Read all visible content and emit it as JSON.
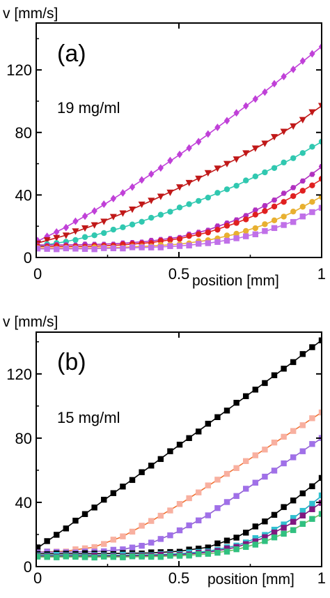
{
  "chart_data": [
    {
      "type": "scatter",
      "panel_label": "(a)",
      "annotation": "19 mg/ml",
      "xlabel": "position [mm]",
      "ylabel": "v [mm/s]",
      "xlim": [
        0,
        1
      ],
      "ylim": [
        0,
        150
      ],
      "xticks": [
        {
          "v": 0,
          "label": "0"
        },
        {
          "v": 0.5,
          "label": "0.5"
        },
        {
          "v": 1,
          "label": "1"
        }
      ],
      "yticks": [
        {
          "v": 0,
          "label": "0"
        },
        {
          "v": 40,
          "label": "40"
        },
        {
          "v": 80,
          "label": "80"
        },
        {
          "v": 120,
          "label": "120"
        }
      ],
      "grid": false,
      "series": [
        {
          "color": "#c040d8",
          "marker": "diamond",
          "fit": [
            [
              0,
              10
            ],
            [
              0.1,
              19
            ],
            [
              0.2,
              29.5
            ],
            [
              0.3,
              41
            ],
            [
              0.4,
              53
            ],
            [
              0.5,
              65.5
            ],
            [
              0.6,
              78.5
            ],
            [
              0.7,
              92
            ],
            [
              0.8,
              106
            ],
            [
              0.9,
              120.5
            ],
            [
              1.0,
              135
            ]
          ]
        },
        {
          "color": "#c01818",
          "marker": "triangle-down",
          "fit": [
            [
              0,
              9
            ],
            [
              0.1,
              14
            ],
            [
              0.2,
              20.5
            ],
            [
              0.3,
              28
            ],
            [
              0.4,
              36
            ],
            [
              0.5,
              44.5
            ],
            [
              0.6,
              53.5
            ],
            [
              0.7,
              63
            ],
            [
              0.8,
              73
            ],
            [
              0.9,
              84
            ],
            [
              1.0,
              97
            ]
          ]
        },
        {
          "color": "#30c8b0",
          "marker": "circle",
          "fit": [
            [
              0,
              7
            ],
            [
              0.1,
              10
            ],
            [
              0.2,
              14
            ],
            [
              0.3,
              19
            ],
            [
              0.4,
              25
            ],
            [
              0.5,
              31.5
            ],
            [
              0.6,
              38.5
            ],
            [
              0.7,
              46
            ],
            [
              0.8,
              54.5
            ],
            [
              0.9,
              63.5
            ],
            [
              1.0,
              74
            ]
          ]
        },
        {
          "color": "#b030c0",
          "marker": "hexagon",
          "fit": [
            [
              0,
              8
            ],
            [
              0.1,
              8
            ],
            [
              0.2,
              8.3
            ],
            [
              0.3,
              9
            ],
            [
              0.4,
              10.5
            ],
            [
              0.5,
              13
            ],
            [
              0.6,
              17.5
            ],
            [
              0.7,
              24
            ],
            [
              0.8,
              33
            ],
            [
              0.9,
              44.5
            ],
            [
              1.0,
              58
            ]
          ]
        },
        {
          "color": "#e02020",
          "marker": "circle",
          "fit": [
            [
              0,
              7
            ],
            [
              0.1,
              7
            ],
            [
              0.2,
              7.2
            ],
            [
              0.3,
              8
            ],
            [
              0.4,
              9.5
            ],
            [
              0.5,
              12
            ],
            [
              0.6,
              16
            ],
            [
              0.7,
              22
            ],
            [
              0.8,
              29.5
            ],
            [
              0.9,
              39
            ],
            [
              1.0,
              50
            ]
          ]
        },
        {
          "color": "#e8b030",
          "marker": "circle",
          "fit": [
            [
              0,
              6
            ],
            [
              0.1,
              6
            ],
            [
              0.2,
              6.1
            ],
            [
              0.3,
              6.5
            ],
            [
              0.4,
              7.3
            ],
            [
              0.5,
              8.5
            ],
            [
              0.6,
              11
            ],
            [
              0.7,
              15
            ],
            [
              0.8,
              21
            ],
            [
              0.9,
              29
            ],
            [
              1.0,
              39
            ]
          ]
        },
        {
          "color": "#c070e8",
          "marker": "square",
          "fit": [
            [
              0,
              5.5
            ],
            [
              0.1,
              5.5
            ],
            [
              0.2,
              5.6
            ],
            [
              0.3,
              6
            ],
            [
              0.4,
              6.5
            ],
            [
              0.5,
              7.3
            ],
            [
              0.6,
              9
            ],
            [
              0.7,
              12
            ],
            [
              0.8,
              16.5
            ],
            [
              0.9,
              23
            ],
            [
              1.0,
              32
            ]
          ]
        }
      ]
    },
    {
      "type": "scatter",
      "panel_label": "(b)",
      "annotation": "15 mg/ml",
      "xlabel": "position [mm]",
      "ylabel": "v [mm/s]",
      "xlim": [
        0,
        1
      ],
      "ylim": [
        0,
        146
      ],
      "xticks": [
        {
          "v": 0,
          "label": "0"
        },
        {
          "v": 0.5,
          "label": "0.5"
        },
        {
          "v": 1,
          "label": "1"
        }
      ],
      "yticks": [
        {
          "v": 0,
          "label": "0"
        },
        {
          "v": 40,
          "label": "40"
        },
        {
          "v": 80,
          "label": "80"
        },
        {
          "v": 120,
          "label": "120"
        }
      ],
      "grid": false,
      "series": [
        {
          "color": "#000000",
          "marker": "square",
          "fit": [
            [
              0,
              11
            ],
            [
              0.1,
              23.5
            ],
            [
              0.2,
              36.5
            ],
            [
              0.3,
              49.5
            ],
            [
              0.4,
              62.5
            ],
            [
              0.5,
              75.5
            ],
            [
              0.6,
              88.5
            ],
            [
              0.7,
              101.5
            ],
            [
              0.8,
              114.5
            ],
            [
              0.9,
              127.5
            ],
            [
              1.0,
              141
            ]
          ]
        },
        {
          "color": "#f07030",
          "marker": "square",
          "marker_color": "#f8b0a0",
          "fit": [
            [
              0,
              9
            ],
            [
              0.1,
              9.5
            ],
            [
              0.2,
              12
            ],
            [
              0.3,
              18.5
            ],
            [
              0.4,
              28
            ],
            [
              0.5,
              38.5
            ],
            [
              0.6,
              50
            ],
            [
              0.7,
              61.5
            ],
            [
              0.8,
              73
            ],
            [
              0.9,
              84.5
            ],
            [
              1.0,
              96
            ]
          ]
        },
        {
          "color": "#9060d0",
          "marker": "square",
          "marker_color": "#a070e8",
          "fit": [
            [
              0,
              9
            ],
            [
              0.1,
              9
            ],
            [
              0.2,
              9.3
            ],
            [
              0.3,
              10.5
            ],
            [
              0.4,
              14.5
            ],
            [
              0.5,
              22
            ],
            [
              0.6,
              32
            ],
            [
              0.7,
              44
            ],
            [
              0.8,
              56
            ],
            [
              0.9,
              68
            ],
            [
              1.0,
              80
            ]
          ]
        },
        {
          "color": "#000000",
          "marker": "square",
          "fit": [
            [
              0,
              8
            ],
            [
              0.1,
              8
            ],
            [
              0.2,
              8
            ],
            [
              0.3,
              8.2
            ],
            [
              0.4,
              8.5
            ],
            [
              0.5,
              9.5
            ],
            [
              0.6,
              12
            ],
            [
              0.7,
              18
            ],
            [
              0.8,
              28
            ],
            [
              0.9,
              41
            ],
            [
              1.0,
              55
            ]
          ]
        },
        {
          "color": "#20a8c0",
          "marker": "square",
          "marker_color": "#30c0d0",
          "fit": [
            [
              0,
              7
            ],
            [
              0.1,
              7
            ],
            [
              0.2,
              7
            ],
            [
              0.3,
              7.1
            ],
            [
              0.4,
              7.4
            ],
            [
              0.5,
              8
            ],
            [
              0.6,
              9.5
            ],
            [
              0.7,
              13
            ],
            [
              0.8,
              19.5
            ],
            [
              0.9,
              30
            ],
            [
              1.0,
              44
            ]
          ]
        },
        {
          "color": "#801880",
          "marker": "square",
          "fit": [
            [
              0,
              6.5
            ],
            [
              0.1,
              6.5
            ],
            [
              0.2,
              6.5
            ],
            [
              0.3,
              6.6
            ],
            [
              0.4,
              6.9
            ],
            [
              0.5,
              7.4
            ],
            [
              0.6,
              8.8
            ],
            [
              0.7,
              12
            ],
            [
              0.8,
              18
            ],
            [
              0.9,
              27.5
            ],
            [
              1.0,
              40
            ]
          ]
        },
        {
          "color": "#70c060",
          "marker": "square",
          "marker_color": "#30c080",
          "fit": [
            [
              0,
              6
            ],
            [
              0.1,
              6
            ],
            [
              0.2,
              6
            ],
            [
              0.3,
              6
            ],
            [
              0.4,
              6.2
            ],
            [
              0.5,
              6.7
            ],
            [
              0.6,
              7.8
            ],
            [
              0.7,
              10.5
            ],
            [
              0.8,
              15.5
            ],
            [
              0.9,
              23
            ],
            [
              1.0,
              33
            ]
          ]
        }
      ]
    }
  ]
}
